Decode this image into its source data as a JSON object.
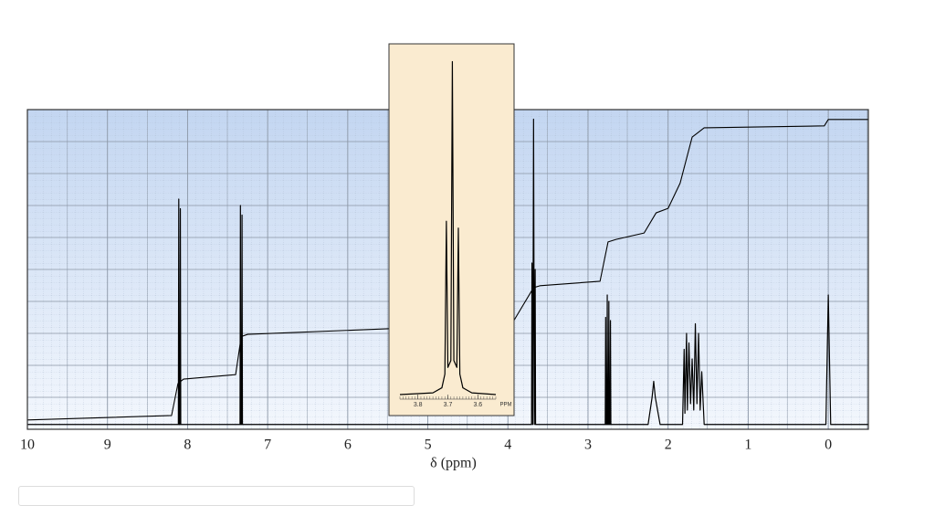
{
  "chart_data": [
    {
      "type": "line",
      "x_label": "δ (ppm)",
      "xlim": [
        10,
        -0.5
      ],
      "ylim": [
        0,
        100
      ],
      "xticks": [
        10,
        9,
        8,
        7,
        6,
        5,
        4,
        3,
        2,
        1,
        0
      ],
      "grid": true,
      "series": [
        {
          "color": "#000000",
          "x": [
            10,
            8.14,
            8.115,
            8.11,
            8.105,
            8.095,
            8.09,
            8.085,
            8.06,
            7.37,
            7.345,
            7.34,
            7.335,
            7.325,
            7.32,
            7.315,
            7.29,
            3.72,
            3.705,
            3.7,
            3.69,
            3.68,
            3.67,
            3.66,
            3.655,
            3.64,
            2.8,
            2.785,
            2.78,
            2.775,
            2.765,
            2.76,
            2.755,
            2.745,
            2.74,
            2.735,
            2.725,
            2.72,
            2.715,
            2.7,
            2.25,
            2.2,
            2.18,
            2.16,
            2.1,
            1.82,
            1.8,
            1.79,
            1.77,
            1.76,
            1.74,
            1.72,
            1.7,
            1.68,
            1.66,
            1.64,
            1.62,
            1.6,
            1.58,
            1.55,
            0.03,
            0.0,
            -0.03,
            -0.5
          ],
          "values": [
            1.5,
            1.5,
            1.5,
            72,
            1.5,
            1.5,
            69,
            1.5,
            1.5,
            1.5,
            1.5,
            70,
            1.5,
            1.5,
            67,
            1.5,
            1.5,
            1.5,
            1.5,
            52,
            1.5,
            97,
            1.5,
            50,
            1.5,
            1.5,
            1.5,
            1.5,
            35,
            1.5,
            1.5,
            42,
            1.5,
            1.5,
            40,
            1.5,
            1.5,
            34,
            1.5,
            1.5,
            1.5,
            10,
            15,
            10,
            1.5,
            1.5,
            25,
            5,
            30,
            6,
            27,
            8,
            22,
            6,
            33,
            8,
            30,
            6,
            18,
            1.5,
            1.5,
            42,
            1.5,
            1.5
          ]
        },
        {
          "color": "#000000",
          "x": [
            10,
            8.2,
            8.12,
            8.05,
            7.4,
            7.33,
            7.25,
            3.95,
            3.68,
            3.6,
            2.85,
            2.75,
            2.65,
            2.3,
            2.15,
            2.0,
            1.85,
            1.7,
            1.55,
            0.05,
            0.0,
            -0.5
          ],
          "values": [
            2.9,
            4.3,
            14.3,
            15.7,
            17.1,
            29,
            29.7,
            33,
            44.3,
            44.9,
            46.3,
            58.6,
            59.4,
            61.4,
            67.7,
            69.1,
            77,
            91.4,
            94.3,
            94.9,
            96.9,
            96.9
          ]
        }
      ]
    },
    {
      "type": "line",
      "x_label": "PPM",
      "xlim": [
        3.86,
        3.54
      ],
      "ylim": [
        0,
        100
      ],
      "xticks": [
        3.8,
        3.7,
        3.6
      ],
      "series": [
        {
          "color": "#000000",
          "x": [
            3.86,
            3.75,
            3.72,
            3.71,
            3.705,
            3.7,
            3.69,
            3.685,
            3.68,
            3.67,
            3.665,
            3.66,
            3.65,
            3.62,
            3.54
          ],
          "values": [
            0,
            0.5,
            2,
            6,
            51,
            8,
            10,
            98,
            10,
            8,
            49,
            6,
            2,
            0.5,
            0
          ]
        }
      ]
    }
  ]
}
